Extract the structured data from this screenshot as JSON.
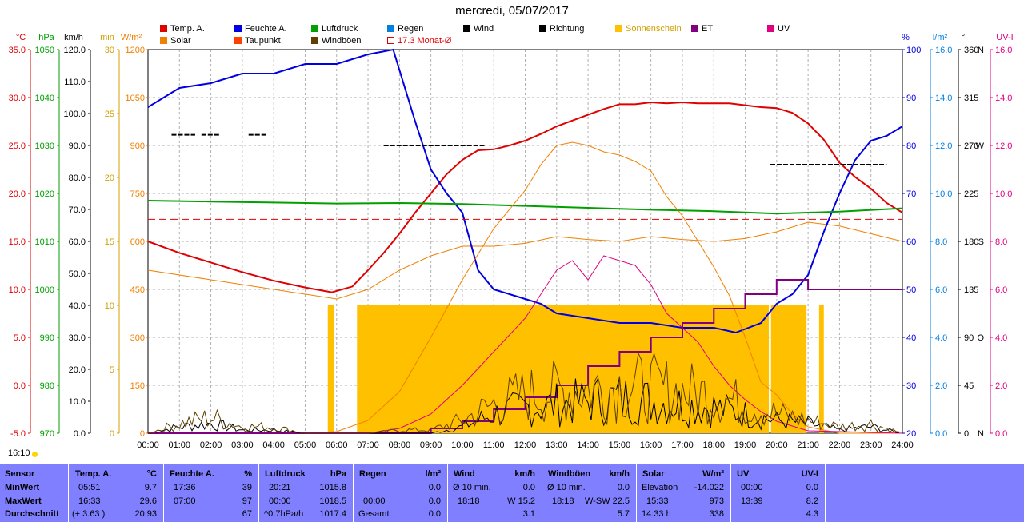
{
  "title": "mercredi, 05/07/2017",
  "time_now": "16:10",
  "legend": [
    {
      "label": "Temp. A.",
      "color": "#e00000"
    },
    {
      "label": "Feuchte A.",
      "color": "#0000e0"
    },
    {
      "label": "Luftdruck",
      "color": "#00a000"
    },
    {
      "label": "Regen",
      "color": "#0080e0"
    },
    {
      "label": "Wind",
      "color": "#000000"
    },
    {
      "label": "Richtung",
      "color": "#000000"
    },
    {
      "label": "Sonnenschein",
      "color": "#ffc000"
    },
    {
      "label": "ET",
      "color": "#800080"
    },
    {
      "label": "UV",
      "color": "#e00080"
    },
    {
      "label": "Solar",
      "color": "#f08000"
    },
    {
      "label": "Taupunkt",
      "color": "#ff4000"
    },
    {
      "label": "Windböen",
      "color": "#604000"
    },
    {
      "label": "17.3 Monat-Ø",
      "color": "#e00000"
    }
  ],
  "axes": {
    "temp": {
      "unit": "°C",
      "color": "#e00000",
      "ticks": [
        "35.0",
        "30.0",
        "25.0",
        "20.0",
        "15.0",
        "10.0",
        "5.0",
        "0.0",
        "-5.0"
      ]
    },
    "hpa": {
      "unit": "hPa",
      "color": "#00a000",
      "ticks": [
        "1050",
        "1040",
        "1030",
        "1020",
        "1010",
        "1000",
        "990",
        "980",
        "970"
      ]
    },
    "kmh": {
      "unit": "km/h",
      "color": "#000000",
      "ticks": [
        "120.0",
        "110.0",
        "100.0",
        "90.0",
        "80.0",
        "70.0",
        "60.0",
        "50.0",
        "40.0",
        "30.0",
        "20.0",
        "10.0",
        "0.0"
      ]
    },
    "min": {
      "unit": "min",
      "color": "#d0a000",
      "ticks": [
        "30",
        "25",
        "20",
        "15",
        "10",
        "5",
        "0"
      ]
    },
    "wm2": {
      "unit": "W/m²",
      "color": "#f08000",
      "ticks": [
        "1200",
        "1050",
        "900",
        "750",
        "600",
        "450",
        "300",
        "150",
        "0"
      ]
    },
    "pct": {
      "unit": "%",
      "color": "#0000e0",
      "ticks": [
        "100",
        "90",
        "80",
        "70",
        "60",
        "50",
        "40",
        "30",
        "20"
      ]
    },
    "lm2": {
      "unit": "l/m²",
      "color": "#0080e0",
      "ticks": [
        "16.0",
        "14.0",
        "12.0",
        "10.0",
        "8.0",
        "6.0",
        "4.0",
        "2.0",
        "0.0"
      ]
    },
    "deg": {
      "unit": "°",
      "color": "#000000",
      "ticks": [
        "360",
        "315",
        "270",
        "225",
        "180",
        "135",
        "90",
        "45",
        "0"
      ]
    },
    "dir": {
      "ticks": [
        "N",
        "",
        "W",
        "",
        "S",
        "",
        "O",
        "",
        "N"
      ]
    },
    "uvi": {
      "unit": "UV-I",
      "color": "#e00080",
      "ticks": [
        "16.0",
        "14.0",
        "12.0",
        "10.0",
        "8.0",
        "6.0",
        "4.0",
        "2.0",
        "0.0"
      ]
    }
  },
  "chart_data": {
    "type": "line",
    "x_labels": [
      "00:00",
      "01:00",
      "02:00",
      "03:00",
      "04:00",
      "05:00",
      "06:00",
      "07:00",
      "08:00",
      "09:00",
      "10:00",
      "11:00",
      "12:00",
      "13:00",
      "14:00",
      "15:00",
      "16:00",
      "17:00",
      "18:00",
      "19:00",
      "20:00",
      "21:00",
      "22:00",
      "23:00",
      "24:00"
    ],
    "x_hours": [
      0,
      1,
      2,
      3,
      4,
      5,
      6,
      7,
      8,
      9,
      10,
      11,
      12,
      13,
      14,
      15,
      16,
      17,
      18,
      19,
      20,
      21,
      22,
      23,
      24
    ],
    "series": [
      {
        "name": "Temp. A.",
        "axis": "temp",
        "color": "#e00000",
        "width": 2,
        "x": [
          0,
          1,
          2,
          3,
          4,
          5,
          5.85,
          6.5,
          7,
          7.5,
          8,
          8.5,
          9,
          9.5,
          10,
          10.5,
          11,
          11.5,
          12,
          12.5,
          13,
          13.5,
          14,
          14.5,
          15,
          15.5,
          16,
          16.5,
          17,
          17.5,
          18,
          18.5,
          19,
          19.5,
          20,
          20.5,
          21,
          21.5,
          22,
          22.5,
          23,
          23.5,
          24
        ],
        "y": [
          15.0,
          13.8,
          12.8,
          11.8,
          10.9,
          10.2,
          9.7,
          10.3,
          12.0,
          13.8,
          15.8,
          18.0,
          20.0,
          22.0,
          23.5,
          24.5,
          24.6,
          25.0,
          25.5,
          26.2,
          27.0,
          27.6,
          28.2,
          28.8,
          29.3,
          29.3,
          29.5,
          29.4,
          29.5,
          29.4,
          29.4,
          29.4,
          29.2,
          29.0,
          28.9,
          28.4,
          27.3,
          25.6,
          23.2,
          21.7,
          20.5,
          19.0,
          18.0
        ]
      },
      {
        "name": "Taupunkt",
        "axis": "temp",
        "color": "#f08000",
        "width": 1,
        "x": [
          0,
          2,
          4,
          6,
          7,
          8,
          9,
          10,
          11,
          12,
          13,
          14,
          15,
          16,
          17,
          18,
          19,
          20,
          21,
          22,
          23,
          24
        ],
        "y": [
          12.0,
          11.0,
          10.0,
          9.0,
          10.0,
          12.0,
          13.5,
          14.5,
          14.5,
          14.8,
          15.5,
          15.2,
          15.0,
          15.5,
          15.2,
          15.0,
          15.3,
          16.0,
          17.0,
          16.6,
          15.8,
          15.0
        ]
      },
      {
        "name": "Feuchte A.",
        "axis": "pct",
        "color": "#0000e0",
        "width": 2,
        "x": [
          0,
          0.5,
          1,
          2,
          3,
          4,
          5,
          6,
          7,
          7.8,
          8.5,
          9,
          9.5,
          10,
          10.5,
          11,
          11.5,
          12,
          12.5,
          13,
          14,
          15,
          16,
          17,
          18,
          18.7,
          19.5,
          20,
          20.5,
          21,
          21.5,
          22,
          22.5,
          23,
          23.5,
          24
        ],
        "y": [
          88,
          90,
          92,
          93,
          95,
          95,
          97,
          97,
          99,
          100,
          85,
          75,
          70,
          66,
          54,
          50,
          49,
          48,
          47,
          45,
          44,
          43,
          43,
          42,
          42,
          41,
          43,
          47,
          49,
          53,
          62,
          70,
          77,
          81,
          82,
          84
        ]
      },
      {
        "name": "Luftdruck",
        "axis": "hpa",
        "color": "#00a000",
        "width": 2,
        "x": [
          0,
          2,
          4,
          6,
          8,
          10,
          12,
          14,
          16,
          18,
          20,
          22,
          24
        ],
        "y": [
          1018.5,
          1018.3,
          1018.1,
          1017.9,
          1018.0,
          1017.8,
          1017.4,
          1017.0,
          1016.6,
          1016.3,
          1015.8,
          1016.2,
          1016.9
        ]
      },
      {
        "name": "Solar",
        "axis": "wm2",
        "color": "#f08000",
        "width": 1,
        "x": [
          0,
          5,
          6,
          7,
          8,
          9,
          10,
          11,
          12,
          12.5,
          13,
          13.5,
          14,
          14.5,
          15,
          15.5,
          16,
          16.5,
          17,
          17.5,
          18,
          18.5,
          19,
          19.5,
          20,
          20.5,
          21,
          22,
          24
        ],
        "y": [
          0,
          0,
          5,
          40,
          130,
          300,
          480,
          640,
          760,
          840,
          900,
          910,
          900,
          880,
          870,
          850,
          820,
          740,
          680,
          600,
          520,
          430,
          300,
          160,
          120,
          60,
          20,
          0,
          0
        ]
      },
      {
        "name": "UV",
        "axis": "uvi",
        "color": "#e00080",
        "width": 1,
        "x": [
          0,
          7,
          8,
          9,
          10,
          11,
          12,
          12.5,
          13,
          13.5,
          14,
          14.5,
          15,
          15.5,
          16,
          16.5,
          17,
          17.5,
          18,
          18.5,
          19,
          19.5,
          20,
          21,
          24
        ],
        "y": [
          0,
          0,
          0.2,
          0.8,
          2.0,
          3.4,
          4.8,
          5.8,
          6.8,
          7.2,
          6.4,
          7.4,
          7.2,
          7.0,
          6.2,
          5.0,
          4.4,
          3.8,
          2.8,
          2.0,
          1.4,
          0.9,
          0.5,
          0.1,
          0
        ]
      },
      {
        "name": "ET",
        "axis": "lm2",
        "color": "#800080",
        "width": 2,
        "step": true,
        "x": [
          0,
          7.5,
          9,
          10,
          11,
          12,
          13,
          14,
          15,
          16,
          17,
          18,
          19,
          20,
          21,
          24
        ],
        "y": [
          0,
          0,
          0.2,
          0.5,
          1.0,
          1.5,
          2.0,
          2.8,
          3.4,
          4.0,
          4.6,
          5.2,
          5.8,
          6.4,
          6.0,
          6.0
        ]
      },
      {
        "name": "17.3 Monat-Ø",
        "axis": "temp",
        "color": "#e00000",
        "width": 1,
        "dashed": true,
        "x": [
          0,
          24
        ],
        "y": [
          17.3,
          17.3
        ]
      },
      {
        "name": "Wind",
        "axis": "kmh",
        "color": "#000000",
        "width": 1,
        "noisy": true,
        "x": [
          0,
          1,
          2,
          3,
          4,
          5,
          6,
          7,
          8,
          9,
          10,
          11,
          12,
          13,
          14,
          15,
          16,
          17,
          18,
          19,
          20,
          21,
          22,
          23,
          24
        ],
        "y": [
          0,
          2,
          3,
          1,
          1,
          0,
          0,
          0,
          0,
          0,
          2,
          6,
          8,
          9,
          10,
          11,
          10,
          9,
          8,
          6,
          4,
          3,
          1,
          2,
          0
        ]
      },
      {
        "name": "Windböen",
        "axis": "kmh",
        "color": "#604000",
        "width": 1,
        "noisy": true,
        "x": [
          0,
          1,
          2,
          3,
          4,
          5,
          6,
          7,
          8,
          9,
          10,
          11,
          12,
          13,
          14,
          15,
          16,
          17,
          18,
          19,
          20,
          21,
          22,
          23,
          24
        ],
        "y": [
          0,
          3,
          5,
          2,
          2,
          0,
          0,
          0,
          1,
          1,
          4,
          9,
          12,
          13,
          14,
          15,
          14,
          13,
          12,
          9,
          6,
          4,
          2,
          3,
          0
        ]
      }
    ],
    "sunshine_blocks": [
      {
        "from": 5.72,
        "to": 5.92,
        "value": 10
      },
      {
        "from": 6.65,
        "to": 19.75,
        "value": 10
      },
      {
        "from": 19.82,
        "to": 20.95,
        "value": 10
      },
      {
        "from": 21.35,
        "to": 21.5,
        "value": 10
      }
    ],
    "wind_direction_dots": [
      {
        "from": 0.75,
        "to": 1.5,
        "deg": 280
      },
      {
        "from": 1.7,
        "to": 2.3,
        "deg": 280
      },
      {
        "from": 3.2,
        "to": 3.8,
        "deg": 280
      },
      {
        "from": 7.5,
        "to": 10.7,
        "deg": 270
      },
      {
        "from": 19.8,
        "to": 23.5,
        "deg": 252
      }
    ]
  },
  "stats": {
    "headers": [
      "Sensor",
      "Temp. A.",
      "°C",
      "Feuchte A.",
      "%",
      "Luftdruck",
      "hPa",
      "Regen",
      "l/m²",
      "Wind",
      "km/h",
      "Windböen",
      "km/h",
      "Solar",
      "W/m²",
      "UV",
      "UV-I"
    ],
    "row_labels": [
      "MinWert",
      "MaxWert",
      "Durchschnitt"
    ],
    "temp": [
      [
        "05:51",
        "9.7"
      ],
      [
        "16:33",
        "29.6"
      ],
      [
        "(+ 3.63 )",
        "20.93"
      ]
    ],
    "feuchte": [
      [
        "17:36",
        "39"
      ],
      [
        "07:00",
        "97"
      ],
      [
        "",
        "67"
      ]
    ],
    "luftdruck": [
      [
        "20:21",
        "1015.8"
      ],
      [
        "00:00",
        "1018.5"
      ],
      [
        "^0.7hPa/h",
        "1017.4"
      ]
    ],
    "regen": [
      [
        "",
        ""
      ],
      [
        "00:00",
        "0.0"
      ],
      [
        "Gesamt:",
        "0.0"
      ]
    ],
    "regen_first": "0.0",
    "wind": [
      [
        "Ø 10 min.",
        "0.0"
      ],
      [
        "18:18",
        "W 15.2"
      ],
      [
        "",
        "3.1"
      ]
    ],
    "boeen": [
      [
        "Ø 10 min.",
        "0.0"
      ],
      [
        "18:18",
        "W-SW 22.5"
      ],
      [
        "",
        "5.7"
      ]
    ],
    "solar": [
      [
        "Elevation",
        "-14.022"
      ],
      [
        "15:33",
        "973"
      ],
      [
        "14:33 h",
        "338"
      ]
    ],
    "uv": [
      [
        "00:00",
        "0.0"
      ],
      [
        "13:39",
        "8.2"
      ],
      [
        "",
        "4.3"
      ]
    ]
  }
}
